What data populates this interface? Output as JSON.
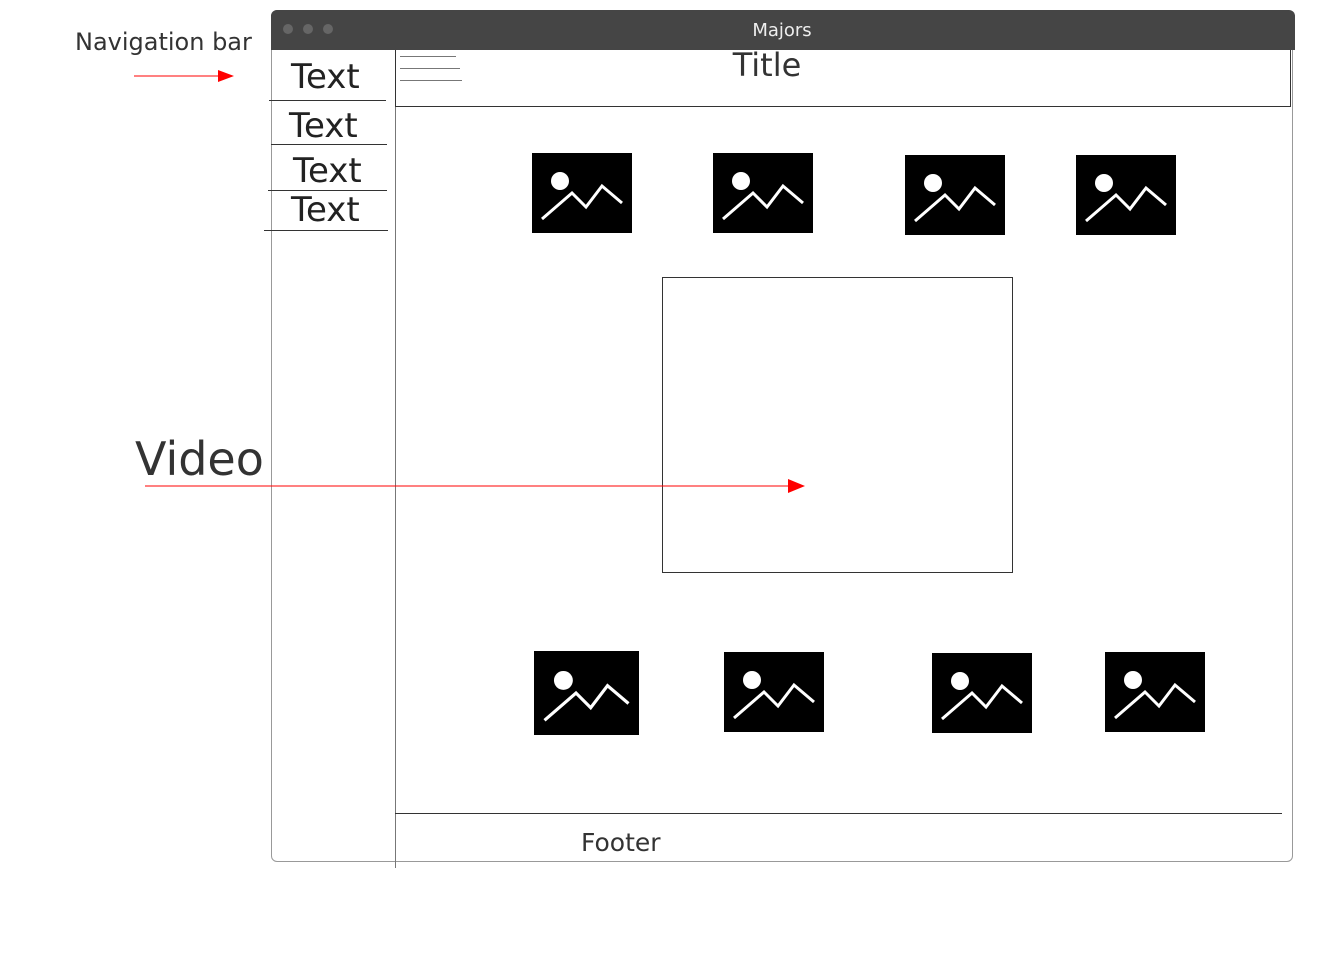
{
  "annotations": {
    "navigation_bar_label": "Navigation bar",
    "video_label": "Video",
    "arrow_color": "#ff0000"
  },
  "window": {
    "title": "Majors"
  },
  "sidebar": {
    "items": [
      {
        "label": "Text"
      },
      {
        "label": "Text"
      },
      {
        "label": "Text"
      },
      {
        "label": "Text"
      }
    ]
  },
  "header": {
    "menu_icon": "hamburger-icon",
    "title": "Title"
  },
  "gallery": {
    "top_row_icon": "image-placeholder-icon",
    "bottom_row_icon": "image-placeholder-icon",
    "top_row_count": 4,
    "bottom_row_count": 4
  },
  "footer": {
    "label": "Footer"
  }
}
